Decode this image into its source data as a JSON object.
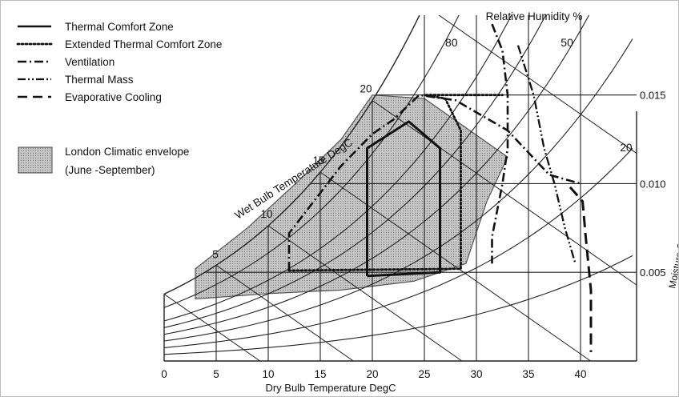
{
  "chart_data": {
    "type": "psychrometric",
    "xlabel": "Dry Bulb Temperature DegC",
    "x_ticks": [
      0,
      5,
      10,
      15,
      20,
      25,
      30,
      35,
      40
    ],
    "xlim": [
      0,
      43
    ],
    "ylabel": "Moisture Content kg/kg air",
    "y_ticks": [
      {
        "value": 0.005,
        "label": "0.005"
      },
      {
        "value": 0.01,
        "label": "0.010"
      },
      {
        "value": 0.015,
        "label": "0.015"
      }
    ],
    "ylim": [
      0.0,
      0.0195
    ],
    "wet_bulb_label": "Wet Bulb Temperature DegC",
    "wet_bulb_lines": [
      {
        "t": 5,
        "label": "5"
      },
      {
        "t": 10,
        "label": "10"
      },
      {
        "t": 15,
        "label": "15"
      },
      {
        "t": 20,
        "label": "20"
      },
      {
        "t": 25,
        "label": "25"
      }
    ],
    "wet_bulb_label_extra": {
      "t": 20,
      "label": "20"
    },
    "rh_title": "Relative Humidity %",
    "rh_lines": [
      {
        "rh": 100
      },
      {
        "rh": 80,
        "label": "80"
      },
      {
        "rh": 60
      },
      {
        "rh": 50,
        "label": "50"
      },
      {
        "rh": 40
      },
      {
        "rh": 30
      },
      {
        "rh": 20
      },
      {
        "rh": 10
      }
    ],
    "legend": [
      {
        "label": "Thermal Comfort Zone",
        "style": "solid"
      },
      {
        "label": "Extended Thermal Comfort Zone",
        "style": "dotted"
      },
      {
        "label": "Ventilation",
        "style": "dash-dot"
      },
      {
        "label": "Thermal Mass",
        "style": "dash-dot-dot"
      },
      {
        "label": "Evaporative Cooling",
        "style": "dashed"
      }
    ],
    "envelope_legend": [
      "London Climatic envelope",
      "(June -September)"
    ],
    "series": [
      {
        "name": "London Climatic envelope",
        "kind": "area",
        "points": [
          [
            3,
            0.0035
          ],
          [
            3,
            0.0052
          ],
          [
            8,
            0.0075
          ],
          [
            13,
            0.0102
          ],
          [
            17,
            0.0125
          ],
          [
            20,
            0.015
          ],
          [
            25,
            0.0148
          ],
          [
            33,
            0.0115
          ],
          [
            31,
            0.009
          ],
          [
            29,
            0.0055
          ],
          [
            24,
            0.0045
          ],
          [
            17,
            0.004
          ],
          [
            10,
            0.0038
          ],
          [
            3,
            0.0035
          ]
        ]
      },
      {
        "name": "Thermal Comfort Zone",
        "kind": "line",
        "points": [
          [
            19.5,
            0.0048
          ],
          [
            26.5,
            0.005
          ],
          [
            26.5,
            0.012
          ],
          [
            23.5,
            0.0135
          ],
          [
            19.5,
            0.012
          ],
          [
            19.5,
            0.0048
          ]
        ]
      },
      {
        "name": "Extended Thermal Comfort Zone",
        "kind": "line",
        "points": [
          [
            12,
            0.0051
          ],
          [
            28.5,
            0.0052
          ],
          [
            28.5,
            0.013
          ],
          [
            27,
            0.0148
          ],
          [
            25,
            0.015
          ],
          [
            32.5,
            0.015
          ]
        ]
      },
      {
        "name": "Ventilation",
        "kind": "line",
        "points": [
          [
            12,
            0.0051
          ],
          [
            12,
            0.0072
          ],
          [
            17,
            0.011
          ],
          [
            20,
            0.0128
          ],
          [
            22,
            0.0136
          ],
          [
            24.5,
            0.015
          ],
          [
            28,
            0.0147
          ],
          [
            33,
            0.013
          ],
          [
            37,
            0.0105
          ],
          [
            40,
            0.01
          ]
        ]
      },
      {
        "name": "Ventilation (upper)",
        "kind": "line",
        "points": [
          [
            31.5,
            0.019
          ],
          [
            32.5,
            0.0175
          ],
          [
            33,
            0.015
          ],
          [
            33,
            0.012
          ],
          [
            32.5,
            0.01
          ],
          [
            31.5,
            0.007
          ],
          [
            31.5,
            0.0055
          ]
        ]
      },
      {
        "name": "Thermal Mass",
        "kind": "line",
        "points": [
          [
            34,
            0.0178
          ],
          [
            35.5,
            0.015
          ],
          [
            36.5,
            0.012
          ],
          [
            37.5,
            0.01
          ],
          [
            38.5,
            0.0075
          ],
          [
            39.5,
            0.0055
          ]
        ]
      },
      {
        "name": "Evaporative Cooling",
        "kind": "line",
        "points": [
          [
            39,
            0.0098
          ],
          [
            40.2,
            0.009
          ],
          [
            40.5,
            0.007
          ],
          [
            41,
            0.004
          ],
          [
            41,
            0.0005
          ]
        ]
      }
    ]
  }
}
